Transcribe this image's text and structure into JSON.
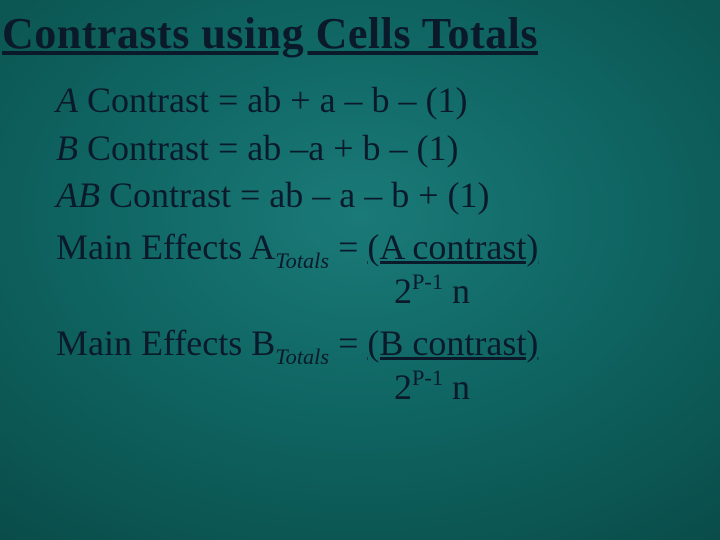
{
  "colors": {
    "text": "#0a1a2a",
    "bg_center": "#1a7a78",
    "bg_outer": "#052e2c"
  },
  "title": "Contrasts using Cells Totals",
  "contrasts": {
    "a": {
      "label": "A",
      "word": "Contrast = ",
      "expr": "ab + a – b – (1)"
    },
    "b": {
      "label": "B",
      "word": "Contrast = ",
      "expr": "ab –a + b – (1)"
    },
    "ab": {
      "label": "AB",
      "word": "Contrast = ",
      "expr": "ab – a – b + (1)"
    }
  },
  "mainA": {
    "prefix": "Main Effects A",
    "sub": "Totals",
    "mid": " = ",
    "num": "(A contrast)",
    "den_pre": "2",
    "den_sup": "P-1",
    "den_post": " n"
  },
  "mainB": {
    "prefix": "Main Effects B",
    "sub": "Totals",
    "mid": " = ",
    "num": "(B contrast)",
    "den_pre": "2",
    "den_sup": "P-1",
    "den_post": " n"
  }
}
